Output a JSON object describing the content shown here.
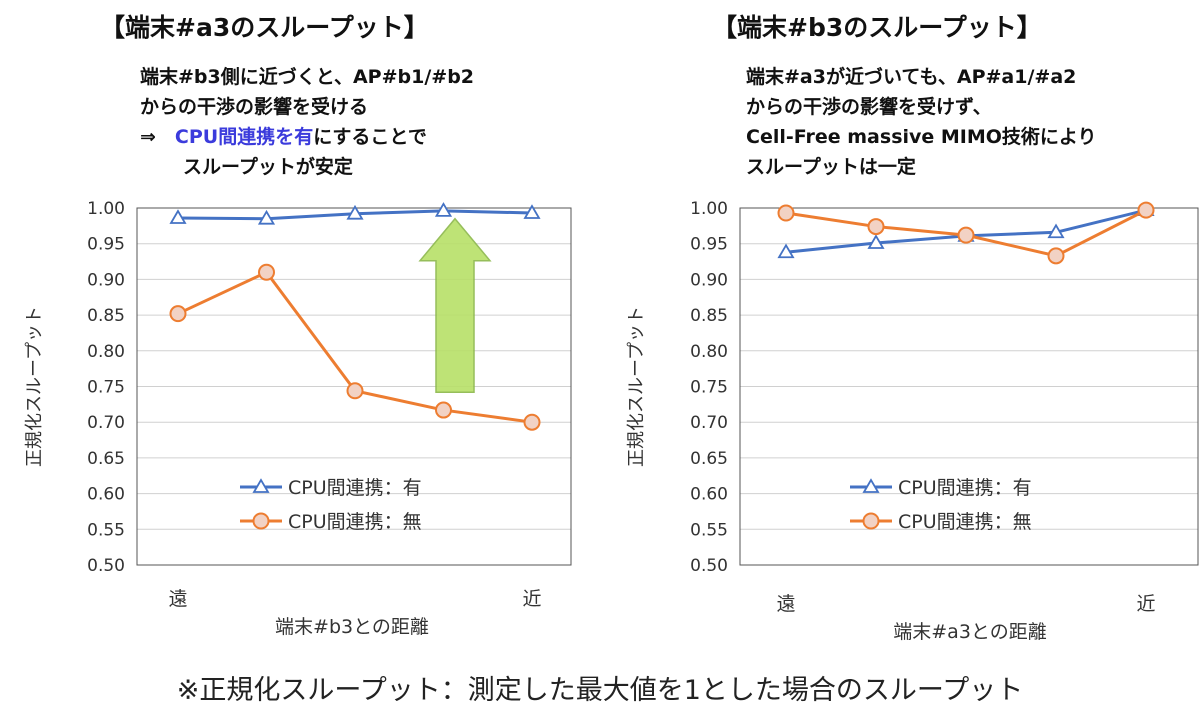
{
  "footnote": "※正規化スループット：測定した最大値を1とした場合のスループット",
  "colors": {
    "series_on": "#4472c4",
    "series_off": "#ed7d31",
    "arrow_fill": "#b8e068",
    "arrow_stroke": "#8bb84a"
  },
  "chart_data": [
    {
      "type": "line",
      "title": "【端末#a3のスループット】",
      "annotation": {
        "line1": "端末#b3側に近づくと、AP#b1/#b2",
        "line2": "からの干渉の影響を受ける",
        "line3_prefix": "⇒　",
        "line3_highlight": "CPU間連携を有",
        "line3_suffix": "にすることで",
        "line4": "スループットが安定"
      },
      "xlabel": "端末#b3との距離",
      "ylabel": "正規化スループット",
      "x_tick_labels": {
        "left": "遠",
        "right": "近"
      },
      "yticks": [
        "1.00",
        "0.95",
        "0.90",
        "0.85",
        "0.80",
        "0.75",
        "0.70",
        "0.65",
        "0.60",
        "0.55",
        "0.50"
      ],
      "ylim": [
        0.5,
        1.0
      ],
      "legend": "inside-bottom",
      "series": [
        {
          "name": "CPU間連携：有",
          "marker": "triangle",
          "values": [
            0.986,
            0.985,
            0.992,
            0.996,
            0.993
          ]
        },
        {
          "name": "CPU間連携：無",
          "marker": "circle",
          "values": [
            0.852,
            0.91,
            0.744,
            0.717,
            0.7
          ]
        }
      ]
    },
    {
      "type": "line",
      "title": "【端末#b3のスループット】",
      "annotation": {
        "line1": "端末#a3が近づいても、AP#a1/#a2",
        "line2": "からの干渉の影響を受けず、",
        "line3": "Cell-Free massive MIMO技術により",
        "line4": "スループットは一定"
      },
      "xlabel": "端末#a3との距離",
      "ylabel": "正規化スループット",
      "x_tick_labels": {
        "left": "遠",
        "right": "近"
      },
      "yticks": [
        "1.00",
        "0.95",
        "0.90",
        "0.85",
        "0.80",
        "0.75",
        "0.70",
        "0.65",
        "0.60",
        "0.55",
        "0.50"
      ],
      "ylim": [
        0.5,
        1.0
      ],
      "legend": "inside-bottom",
      "series": [
        {
          "name": "CPU間連携：有",
          "marker": "triangle",
          "values": [
            0.938,
            0.951,
            0.961,
            0.966,
            0.997
          ]
        },
        {
          "name": "CPU間連携：無",
          "marker": "circle",
          "values": [
            0.993,
            0.974,
            0.962,
            0.933,
            0.997
          ]
        }
      ]
    }
  ]
}
